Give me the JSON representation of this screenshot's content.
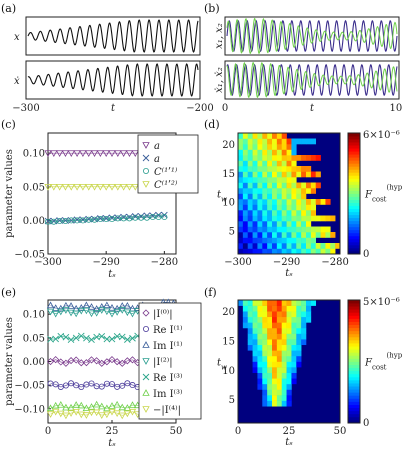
{
  "panels": {
    "a": "(a)",
    "b": "(b)",
    "c": "(c)",
    "d": "(d)",
    "e": "(e)",
    "f": "(f)"
  },
  "chart_data": [
    {
      "id": "a",
      "type": "line",
      "xlabel": "t",
      "xticks": [
        "−300",
        "t",
        "−200"
      ],
      "xlim": [
        -300,
        -200
      ],
      "subplots": [
        {
          "ylabel": "x",
          "series": [
            {
              "color": "#111111",
              "description_values": {
                "amplitude_start": 0.25,
                "amplitude_end": 1.0,
                "cycles": 17
              }
            }
          ]
        },
        {
          "ylabel": "ẋ",
          "series": [
            {
              "color": "#111111",
              "description_values": {
                "amplitude_start": 0.25,
                "amplitude_end": 1.0,
                "cycles": 17
              }
            }
          ]
        }
      ]
    },
    {
      "id": "b",
      "type": "line",
      "xlabel": "t",
      "xticks": [
        "0",
        "t",
        "100"
      ],
      "xlim": [
        0,
        100
      ],
      "subplots": [
        {
          "ylabel": "x₁, x₂",
          "series": [
            {
              "color": "#3a2d8c"
            },
            {
              "color": "#6fd04a"
            }
          ]
        },
        {
          "ylabel": "ẋ₁, ẋ₂",
          "series": [
            {
              "color": "#3a2d8c"
            },
            {
              "color": "#6fd04a"
            }
          ]
        }
      ]
    },
    {
      "id": "c",
      "type": "scatter",
      "xlabel": "tₛ",
      "ylabel": "parameter values",
      "xlim": [
        -300,
        -278
      ],
      "ylim": [
        -0.05,
        0.13
      ],
      "xticks": [
        -300,
        -290,
        -280
      ],
      "yticks": [
        -0.05,
        0.0,
        0.05,
        0.1
      ],
      "ytick_labels": [
        "−0.05",
        "0.00",
        "0.05",
        "0.10"
      ],
      "legend": [
        "a",
        "a",
        "C⁽¹ʹ¹⁾",
        "C⁽¹ʹ²⁾"
      ],
      "series": [
        {
          "name": "a",
          "marker": "triangle-down",
          "color": "#7a3a8c",
          "values": [
            0.1,
            0.1,
            0.1,
            0.1,
            0.1,
            0.1,
            0.1,
            0.1,
            0.1,
            0.1,
            0.1,
            0.1,
            0.1,
            0.1,
            0.1,
            0.1,
            0.1,
            0.1,
            0.1,
            0.1,
            0.1
          ]
        },
        {
          "name": "a",
          "marker": "x",
          "color": "#3a5e9a",
          "values": [
            -0.001,
            -0.001,
            0.0,
            0.0,
            0.0,
            0.001,
            0.001,
            0.002,
            0.002,
            0.003,
            0.003,
            0.004,
            0.004,
            0.005,
            0.005,
            0.006,
            0.006,
            0.007,
            0.007,
            0.008,
            0.008
          ]
        },
        {
          "name": "C⁽¹ʹ¹⁾",
          "marker": "circle",
          "color": "#2a9d8f",
          "values": [
            -0.002,
            -0.002,
            -0.001,
            -0.001,
            0.0,
            0.0,
            0.0,
            0.001,
            0.001,
            0.002,
            0.002,
            0.002,
            0.003,
            0.003,
            0.003,
            0.004,
            0.004,
            0.004,
            0.005,
            0.005,
            0.005
          ]
        },
        {
          "name": "C⁽¹ʹ²⁾",
          "marker": "triangle-down",
          "color": "#c9d64a",
          "values": [
            0.05,
            0.05,
            0.05,
            0.05,
            0.05,
            0.05,
            0.05,
            0.05,
            0.05,
            0.05,
            0.05,
            0.05,
            0.05,
            0.05,
            0.05,
            0.05,
            0.05,
            0.05,
            0.05,
            0.05,
            0.05
          ]
        }
      ],
      "x_values": [
        -300,
        -299,
        -298,
        -297,
        -296,
        -295,
        -294,
        -293,
        -292,
        -291,
        -290,
        -289,
        -288,
        -287,
        -286,
        -285,
        -284,
        -283,
        -282,
        -281,
        -280
      ]
    },
    {
      "id": "d",
      "type": "heatmap",
      "xlabel": "tₛ",
      "ylabel": "t_w",
      "colorbar_label": "F_cost^(hyp)",
      "colorbar_ticks": [
        "0",
        "6×10⁻⁶"
      ],
      "colorbar_range": [
        0,
        6e-06
      ],
      "xticks": [
        -300,
        -290,
        -280
      ],
      "yticks": [
        5,
        10,
        15,
        20
      ],
      "xlim": [
        -300,
        -279
      ],
      "ylim": [
        1,
        22
      ],
      "description": "Low cost (dark red) concentrated at small t_w and t_s near -300; cost increases toward large t_w and t_s > -290 (blue)."
    },
    {
      "id": "e",
      "type": "scatter",
      "xlabel": "tₛ",
      "ylabel": "parameter values",
      "xlim": [
        0,
        50
      ],
      "ylim": [
        -0.13,
        0.13
      ],
      "xticks": [
        0,
        25,
        50
      ],
      "yticks": [
        -0.1,
        -0.05,
        0.0,
        0.05,
        0.1
      ],
      "ytick_labels": [
        "−0.10",
        "−0.05",
        "0.00",
        "0.05",
        "0.10"
      ],
      "legend": [
        "|I⁽⁰⁾|",
        "Re I⁽¹⁾",
        "Im I⁽¹⁾",
        "|I⁽²⁾|",
        "Re I⁽³⁾",
        "Im I⁽³⁾",
        "−|I⁽⁴⁾|"
      ],
      "series": [
        {
          "name": "|I(0)|",
          "marker": "diamond",
          "color": "#7a3a8c",
          "level": 0.0
        },
        {
          "name": "Re I(1)",
          "marker": "circle",
          "color": "#4a3a9a",
          "level": -0.05
        },
        {
          "name": "Im I(1)",
          "marker": "triangle-up",
          "color": "#3a5e9a",
          "level": 0.115
        },
        {
          "name": "|I(2)|",
          "marker": "triangle-down",
          "color": "#2a9d8f",
          "level": 0.105
        },
        {
          "name": "Re I(3)",
          "marker": "x",
          "color": "#2aa58a",
          "level": 0.05
        },
        {
          "name": "Im I(3)",
          "marker": "triangle-up",
          "color": "#6fd04a",
          "level": -0.095
        },
        {
          "name": "−|I(4)|",
          "marker": "triangle-down",
          "color": "#c9d64a",
          "level": -0.11
        }
      ]
    },
    {
      "id": "f",
      "type": "heatmap",
      "xlabel": "tₛ",
      "ylabel": "t_w",
      "colorbar_label": "F_cost^(hyp)",
      "colorbar_ticks": [
        "0",
        "5×10⁻⁶"
      ],
      "colorbar_range": [
        0,
        5e-06
      ],
      "xticks": [
        0,
        25,
        50
      ],
      "yticks": [
        5,
        10,
        15,
        20
      ],
      "xlim": [
        0,
        50
      ],
      "ylim": [
        1,
        22
      ],
      "description": "Low cost (red) in a plume centred at t_s~18, t_w 10-22; surrounded by yellow/cyan; dark blue elsewhere."
    }
  ]
}
